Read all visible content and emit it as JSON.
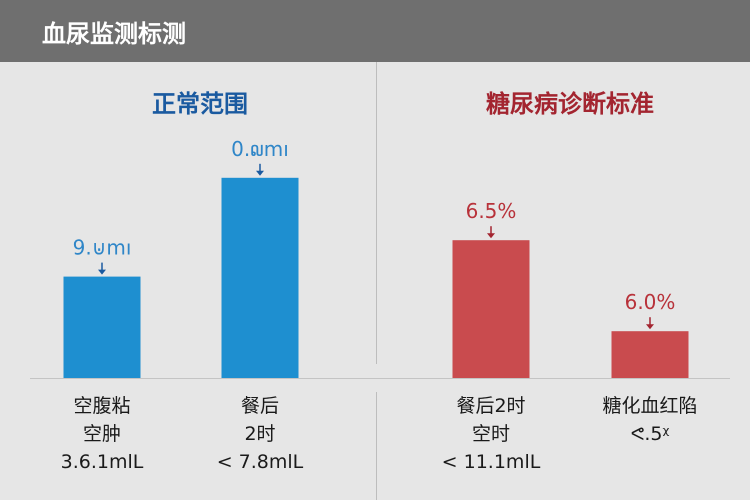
{
  "header": {
    "title": "血尿监测标测"
  },
  "sections": {
    "left_title": "正常范围",
    "right_title": "糖尿病诊断标准"
  },
  "colors": {
    "header_bg": "#6f6f6f",
    "blue_bar": "#1e8fd0",
    "red_bar": "#c94b4e",
    "blue_text": "#1a5aa0",
    "red_text": "#a32530"
  },
  "chart_data": {
    "type": "bar",
    "groups": [
      "正常范围",
      "糖尿病诊断标准"
    ],
    "bars": [
      {
        "group": "正常范围",
        "value_label": "9.⊍mı",
        "relative_value": 0.39,
        "label_lines": [
          "空腹粘",
          "空肿",
          "3.6.1mlL"
        ],
        "color": "#1e8fd0"
      },
      {
        "group": "正常范围",
        "value_label": "0.໙mı",
        "relative_value": 0.77,
        "label_lines": [
          "餐后",
          "2时",
          "< 7.8mlL"
        ],
        "color": "#1e8fd0"
      },
      {
        "group": "糖尿病诊断标准",
        "value_label": "6.5%",
        "relative_value": 0.53,
        "label_lines": [
          "餐后2时",
          "空时",
          "< 11.1mlL"
        ],
        "color": "#c94b4e"
      },
      {
        "group": "糖尿病诊断标准",
        "value_label": "6.0%",
        "relative_value": 0.18,
        "label_lines": [
          "糖化血红陷",
          "ᕙ.5ᵡ"
        ],
        "color": "#c94b4e"
      }
    ],
    "title": "",
    "xlabel": "",
    "ylabel": "",
    "grid": false
  }
}
